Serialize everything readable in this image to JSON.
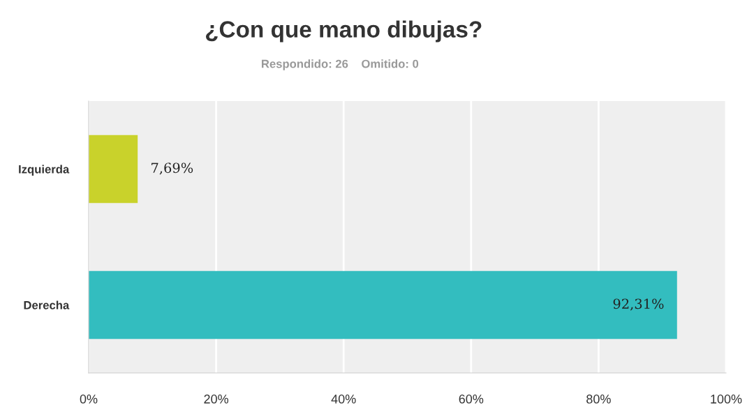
{
  "chart_data": {
    "type": "bar",
    "orientation": "horizontal",
    "title": "¿Con que mano dibujas?",
    "subtitle": "Respondido: 26    Omitido: 0",
    "categories": [
      "Izquierda",
      "Derecha"
    ],
    "values": [
      7.69,
      92.31
    ],
    "colors": [
      "#c9d22b",
      "#33bdbf"
    ],
    "value_labels": [
      "7,69%",
      "92,31%"
    ],
    "xlim": [
      0,
      100
    ],
    "xticks": [
      {
        "value": 0,
        "label": "0%"
      },
      {
        "value": 20,
        "label": "20%"
      },
      {
        "value": 40,
        "label": "40%"
      },
      {
        "value": 60,
        "label": "60%"
      },
      {
        "value": 80,
        "label": "80%"
      },
      {
        "value": 100,
        "label": "100%"
      }
    ],
    "grid": "x"
  }
}
